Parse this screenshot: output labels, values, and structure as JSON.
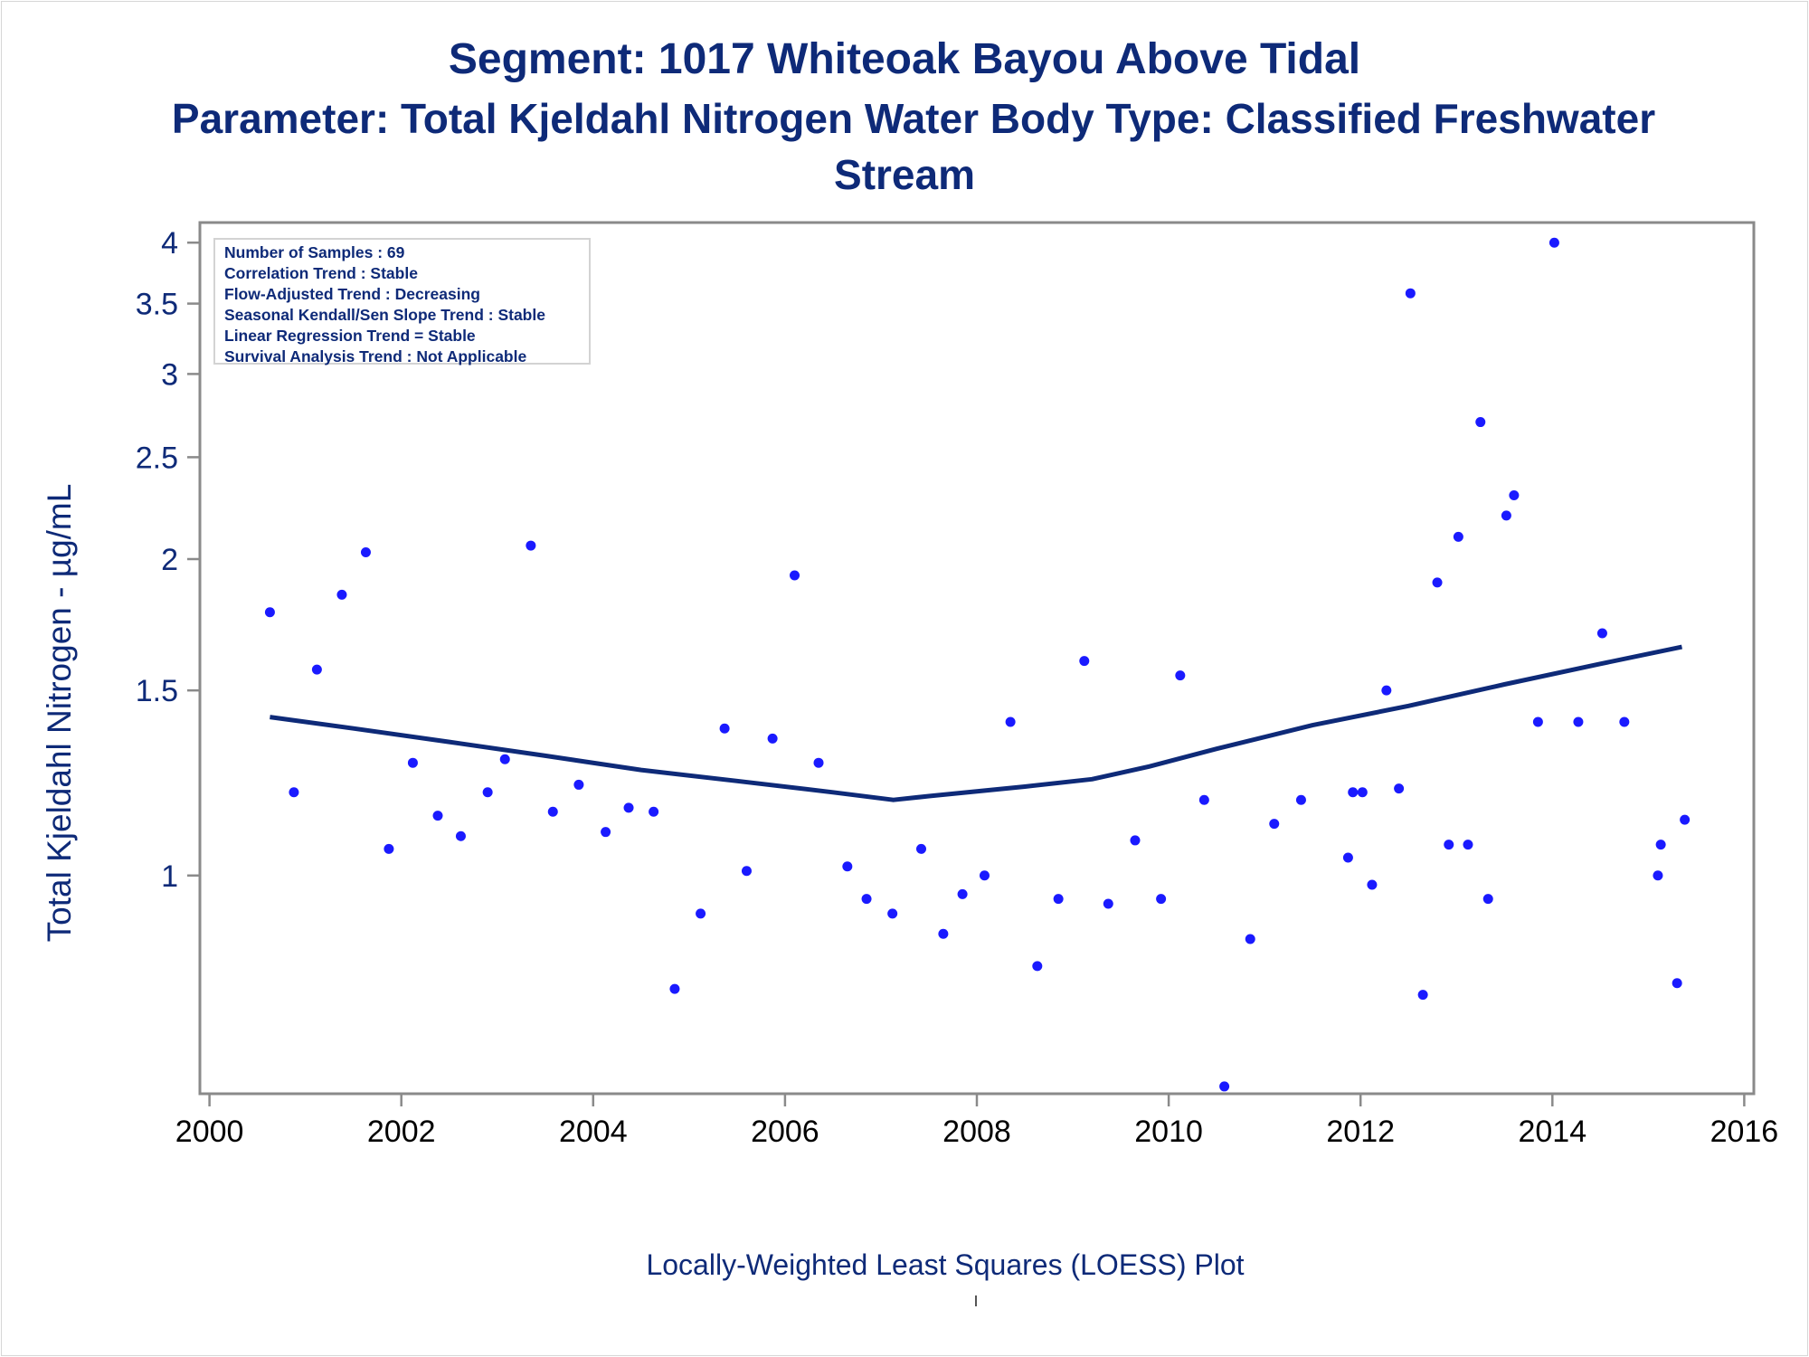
{
  "title_line1": "Segment: 1017  Whiteoak Bayou Above Tidal",
  "title_line2": "Parameter: Total Kjeldahl Nitrogen   Water Body Type: Classified Freshwater",
  "title_line3": "Stream",
  "stats": [
    "Number of Samples : 69",
    "Correlation Trend : Stable",
    "Flow-Adjusted Trend : Decreasing",
    "Seasonal Kendall/Sen Slope Trend : Stable",
    "Linear Regression Trend = Stable",
    "Survival Analysis Trend : Not Applicable"
  ],
  "footnote": "Locally-Weighted Least Squares (LOESS) Plot",
  "colors": {
    "text": "#0e2a78",
    "points": "#1a1aff",
    "loess": "#0e2a78",
    "axis": "#8a8a8a"
  },
  "chart_data": {
    "type": "scatter",
    "ylabel": "Total Kjeldahl Nitrogen -  µg/mL",
    "xlabel": "",
    "y_scale": "log",
    "xlim": [
      1999.9,
      2016.1
    ],
    "ylim": [
      0.62,
      4.18
    ],
    "x_ticks": [
      2000,
      2002,
      2004,
      2006,
      2008,
      2010,
      2012,
      2014,
      2016
    ],
    "y_ticks": [
      1,
      1.5,
      2,
      2.5,
      3,
      3.5,
      4
    ],
    "grid": false,
    "series": [
      {
        "kind": "points",
        "points": [
          [
            2000.63,
            1.78
          ],
          [
            2000.88,
            1.2
          ],
          [
            2001.12,
            1.57
          ],
          [
            2001.38,
            1.85
          ],
          [
            2001.63,
            2.03
          ],
          [
            2001.87,
            1.06
          ],
          [
            2002.12,
            1.28
          ],
          [
            2002.38,
            1.14
          ],
          [
            2002.62,
            1.09
          ],
          [
            2002.9,
            1.2
          ],
          [
            2003.08,
            1.29
          ],
          [
            2003.35,
            2.06
          ],
          [
            2003.58,
            1.15
          ],
          [
            2003.85,
            1.22
          ],
          [
            2004.13,
            1.1
          ],
          [
            2004.37,
            1.16
          ],
          [
            2004.63,
            1.15
          ],
          [
            2004.85,
            0.78
          ],
          [
            2005.12,
            0.92
          ],
          [
            2005.37,
            1.38
          ],
          [
            2005.6,
            1.01
          ],
          [
            2005.87,
            1.35
          ],
          [
            2006.1,
            1.93
          ],
          [
            2006.35,
            1.28
          ],
          [
            2006.65,
            1.02
          ],
          [
            2006.85,
            0.95
          ],
          [
            2007.12,
            0.92
          ],
          [
            2007.42,
            1.06
          ],
          [
            2007.65,
            0.88
          ],
          [
            2007.85,
            0.96
          ],
          [
            2008.08,
            1.0
          ],
          [
            2008.35,
            1.4
          ],
          [
            2008.63,
            0.82
          ],
          [
            2008.85,
            0.95
          ],
          [
            2009.12,
            1.6
          ],
          [
            2009.37,
            0.94
          ],
          [
            2009.65,
            1.08
          ],
          [
            2009.92,
            0.95
          ],
          [
            2010.12,
            1.55
          ],
          [
            2010.37,
            1.18
          ],
          [
            2010.58,
            0.63
          ],
          [
            2010.85,
            0.87
          ],
          [
            2011.1,
            1.12
          ],
          [
            2011.38,
            1.18
          ],
          [
            2011.87,
            1.04
          ],
          [
            2011.92,
            1.2
          ],
          [
            2012.02,
            1.2
          ],
          [
            2012.12,
            0.98
          ],
          [
            2012.27,
            1.5
          ],
          [
            2012.4,
            1.21
          ],
          [
            2012.52,
            3.58
          ],
          [
            2012.65,
            0.77
          ],
          [
            2012.8,
            1.9
          ],
          [
            2012.92,
            1.07
          ],
          [
            2013.02,
            2.1
          ],
          [
            2013.12,
            1.07
          ],
          [
            2013.25,
            2.7
          ],
          [
            2013.33,
            0.95
          ],
          [
            2013.52,
            2.2
          ],
          [
            2013.6,
            2.3
          ],
          [
            2013.85,
            1.4
          ],
          [
            2014.02,
            4.0
          ],
          [
            2014.27,
            1.4
          ],
          [
            2014.52,
            1.7
          ],
          [
            2014.75,
            1.4
          ],
          [
            2015.1,
            1.0
          ],
          [
            2015.13,
            1.07
          ],
          [
            2015.3,
            0.79
          ],
          [
            2015.38,
            1.13
          ]
        ]
      },
      {
        "kind": "loess",
        "points": [
          [
            2000.63,
            1.415
          ],
          [
            2001.5,
            1.38
          ],
          [
            2002.5,
            1.34
          ],
          [
            2003.5,
            1.3
          ],
          [
            2004.5,
            1.26
          ],
          [
            2005.5,
            1.23
          ],
          [
            2006.5,
            1.2
          ],
          [
            2007.13,
            1.18
          ],
          [
            2007.5,
            1.19
          ],
          [
            2008.5,
            1.215
          ],
          [
            2009.2,
            1.235
          ],
          [
            2009.8,
            1.27
          ],
          [
            2010.5,
            1.32
          ],
          [
            2011.5,
            1.39
          ],
          [
            2012.5,
            1.45
          ],
          [
            2013.5,
            1.52
          ],
          [
            2014.5,
            1.59
          ],
          [
            2015.35,
            1.65
          ]
        ]
      }
    ]
  }
}
